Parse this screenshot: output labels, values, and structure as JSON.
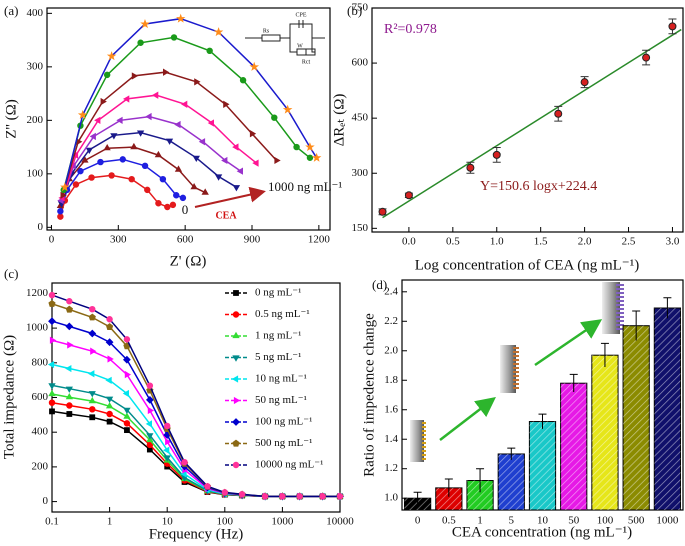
{
  "chart_data": [
    {
      "type": "line",
      "panel_label": "(a)",
      "x_label": "Z' (Ω)",
      "y_label": "Z'' (Ω)",
      "xlim": [
        -20,
        1250
      ],
      "xticks": [
        0,
        300,
        600,
        900,
        1200
      ],
      "ylim": [
        -5,
        410
      ],
      "yticks": [
        0,
        100,
        200,
        300,
        400
      ],
      "annotations": {
        "start": "0",
        "arrow": "CEA",
        "end": "1000 ng mL⁻¹"
      },
      "circuit_labels": [
        "Rs",
        "CPE",
        "Rct",
        "W"
      ],
      "series": [
        {
          "color": "#e41a1c",
          "marker": "circle",
          "x": [
            40,
            60,
            110,
            180,
            270,
            360,
            430,
            480,
            520,
            545
          ],
          "values": [
            20,
            50,
            80,
            93,
            97,
            90,
            70,
            45,
            38,
            42
          ]
        },
        {
          "color": "#1f1fe0",
          "marker": "circle",
          "x": [
            40,
            70,
            130,
            220,
            320,
            420,
            500,
            560,
            590
          ],
          "values": [
            30,
            70,
            105,
            122,
            127,
            115,
            90,
            60,
            55
          ]
        },
        {
          "color": "#8b1a1a",
          "marker": "triangle-up",
          "x": [
            40,
            80,
            150,
            250,
            370,
            480,
            570,
            640,
            690
          ],
          "values": [
            40,
            90,
            125,
            148,
            150,
            135,
            108,
            75,
            65
          ]
        },
        {
          "color": "#1a1a8b",
          "marker": "triangle-down",
          "x": [
            45,
            90,
            170,
            280,
            400,
            530,
            650,
            750,
            830
          ],
          "values": [
            45,
            100,
            145,
            172,
            177,
            162,
            130,
            95,
            75
          ]
        },
        {
          "color": "#9932cc",
          "marker": "triangle-left",
          "x": [
            45,
            100,
            190,
            310,
            440,
            570,
            680,
            780,
            850
          ],
          "values": [
            50,
            115,
            170,
            200,
            207,
            192,
            160,
            125,
            105
          ]
        },
        {
          "color": "#ff1493",
          "marker": "triangle-left",
          "x": [
            50,
            110,
            210,
            340,
            470,
            600,
            720,
            830,
            920
          ],
          "values": [
            55,
            135,
            200,
            240,
            247,
            230,
            195,
            150,
            120
          ]
        },
        {
          "color": "#8b1a1a",
          "marker": "triangle-right",
          "x": [
            50,
            120,
            230,
            370,
            510,
            650,
            780,
            900,
            1010
          ],
          "values": [
            60,
            160,
            235,
            283,
            290,
            272,
            230,
            175,
            125
          ]
        },
        {
          "color": "#1a9a1a",
          "marker": "circle",
          "x": [
            55,
            130,
            250,
            400,
            550,
            710,
            860,
            1000,
            1100,
            1160
          ],
          "values": [
            70,
            190,
            285,
            345,
            355,
            330,
            275,
            205,
            150,
            130
          ]
        },
        {
          "color": "#1a1acd",
          "marker_color": "#ff8c1a",
          "marker": "star",
          "x": [
            60,
            140,
            270,
            420,
            580,
            750,
            910,
            1060,
            1160,
            1190
          ],
          "values": [
            75,
            210,
            320,
            380,
            390,
            365,
            300,
            220,
            150,
            130
          ]
        }
      ]
    },
    {
      "type": "scatter",
      "panel_label": "(b)",
      "x_label": "Log concentration of CEA (ng mL⁻¹)",
      "y_label": "ΔRₑₜ (Ω)",
      "xlim": [
        -0.42,
        3.12
      ],
      "xticks": [
        {
          "value": 0,
          "label": "0.0"
        },
        0.5,
        {
          "value": 1,
          "label": "1.0"
        },
        1.5,
        {
          "value": 2,
          "label": "2.0"
        },
        2.5,
        {
          "value": 3,
          "label": "3.0"
        }
      ],
      "ylim": [
        140,
        750
      ],
      "yticks": [
        150,
        300,
        450,
        600,
        750
      ],
      "r_squared": "R²=0.978",
      "equation": "Y=150.6 logx+224.4",
      "x": [
        -0.3,
        0,
        0.7,
        1,
        1.7,
        2,
        2.7,
        3
      ],
      "series": [
        {
          "color": "#d62020",
          "values": [
            195,
            240,
            315,
            350,
            462,
            548,
            615,
            700
          ],
          "errors": [
            8,
            6,
            15,
            20,
            20,
            15,
            20,
            20
          ]
        }
      ],
      "fit": {
        "color": "#2a8a2a",
        "x": [
          -0.3,
          3.1
        ],
        "y": [
          179.2,
          691.3
        ]
      }
    },
    {
      "type": "line",
      "panel_label": "(c)",
      "x_label": "Frequency (Hz)",
      "y_label": "Total impedance (Ω)",
      "log_x": true,
      "legend": "upper right",
      "xlim": [
        0.1,
        10000
      ],
      "xticks": [
        0.1,
        1,
        10,
        100,
        1000,
        10000
      ],
      "ylim": [
        -60,
        1260
      ],
      "yticks": [
        0,
        200,
        400,
        600,
        800,
        1000,
        1200
      ],
      "x": [
        0.1,
        0.2,
        0.5,
        1,
        2,
        5,
        10,
        20,
        50,
        100,
        200,
        500,
        1000,
        2000,
        5000,
        10000
      ],
      "series": [
        {
          "name": "0 ng mL⁻¹",
          "color": "#000000",
          "marker": "square",
          "values": [
            520,
            505,
            486,
            461,
            412,
            300,
            202,
            113,
            55,
            40,
            35,
            30,
            30,
            30,
            30,
            30
          ]
        },
        {
          "name": "0.5 ng mL⁻¹",
          "color": "#ff0000",
          "marker": "circle",
          "values": [
            570,
            554,
            532,
            505,
            451,
            327,
            219,
            122,
            57,
            41,
            35,
            30,
            30,
            30,
            30,
            30
          ]
        },
        {
          "name": "1 ng mL⁻¹",
          "color": "#33dd33",
          "marker": "triangle-up",
          "values": [
            620,
            602,
            579,
            549,
            490,
            355,
            237,
            130,
            60,
            42,
            36,
            30,
            30,
            30,
            30,
            30
          ]
        },
        {
          "name": "5 ng mL⁻¹",
          "color": "#008b8b",
          "marker": "triangle-down",
          "values": [
            670,
            651,
            625,
            593,
            529,
            382,
            254,
            139,
            62,
            43,
            36,
            30,
            30,
            30,
            30,
            30
          ]
        },
        {
          "name": "10 ng mL⁻¹",
          "color": "#00e5ee",
          "marker": "triangle-left",
          "values": [
            790,
            767,
            737,
            699,
            623,
            448,
            296,
            159,
            68,
            45,
            38,
            30,
            30,
            30,
            30,
            30
          ]
        },
        {
          "name": "50 ng mL⁻¹",
          "color": "#ff00ff",
          "marker": "triangle-right",
          "values": [
            930,
            903,
            867,
            822,
            732,
            525,
            345,
            183,
            75,
            48,
            39,
            30,
            30,
            30,
            30,
            30
          ]
        },
        {
          "name": "100 ng mL⁻¹",
          "color": "#0000cd",
          "marker": "diamond",
          "values": [
            1040,
            1010,
            969,
            919,
            818,
            586,
            384,
            202,
            81,
            50,
            40,
            30,
            30,
            30,
            30,
            30
          ]
        },
        {
          "name": "500 ng mL⁻¹",
          "color": "#8b6914",
          "marker": "pentagon",
          "values": [
            1140,
            1107,
            1062,
            1007,
            896,
            641,
            419,
            219,
            86,
            52,
            41,
            30,
            30,
            30,
            30,
            30
          ]
        },
        {
          "name": "10000 ng mL⁻¹",
          "color": "#00007f",
          "marker_color": "#ff3399",
          "marker": "circle",
          "values": [
            1190,
            1155,
            1109,
            1051,
            935,
            668,
            436,
            227,
            88,
            53,
            42,
            30,
            30,
            30,
            30,
            30
          ]
        }
      ]
    },
    {
      "type": "bar",
      "panel_label": "(d)",
      "x_label": "CEA concentration (ng mL⁻¹)",
      "y_label": "Ratio of impedence change",
      "ylim": [
        0.92,
        2.48
      ],
      "yticks": [
        {
          "value": 1,
          "label": "1.0"
        },
        1.2,
        1.4,
        1.6,
        1.8,
        {
          "value": 2,
          "label": "2.0"
        },
        2.2,
        2.4
      ],
      "categories": [
        "0",
        "0.5",
        "1",
        "5",
        "10",
        "50",
        "100",
        "500",
        "1000"
      ],
      "values": [
        1.0,
        1.07,
        1.12,
        1.3,
        1.52,
        1.78,
        1.97,
        2.17,
        2.29
      ],
      "errors": [
        0.04,
        0.06,
        0.08,
        0.04,
        0.05,
        0.06,
        0.08,
        0.1,
        0.07
      ],
      "colors": [
        "#000000",
        "#dd0000",
        "#22cc22",
        "#1f3fcf",
        "#19c8c8",
        "#e619e6",
        "#e6e619",
        "#8b8b00",
        "#10106b"
      ]
    }
  ]
}
